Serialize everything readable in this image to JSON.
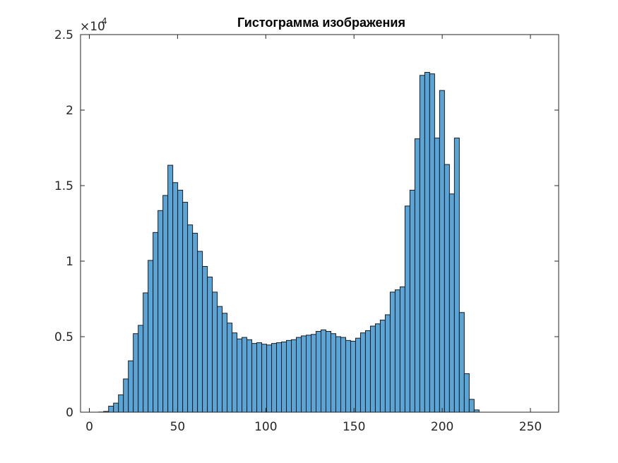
{
  "chart_data": {
    "type": "bar",
    "title": "Гистограмма изображения",
    "xlabel": "",
    "ylabel": "",
    "xlim": [
      -5,
      266
    ],
    "ylim": [
      0,
      25000
    ],
    "x_ticks": [
      0,
      50,
      100,
      150,
      200,
      250
    ],
    "y_ticks": [
      0,
      5000,
      10000,
      15000,
      20000,
      25000
    ],
    "y_tick_labels": [
      "0",
      "0.5",
      "1",
      "1.5",
      "2",
      "2.5"
    ],
    "y_exponent": {
      "base": "×10",
      "power": "4"
    },
    "grid": false,
    "bar_color": "#5aa5d8",
    "bin_width": 2.8,
    "bins_start": 2.5,
    "values": [
      0,
      10,
      50,
      400,
      600,
      1150,
      2200,
      3400,
      5200,
      5750,
      7900,
      10050,
      11900,
      13350,
      14350,
      16350,
      15200,
      14700,
      13900,
      12400,
      11850,
      10650,
      9650,
      8950,
      7950,
      7000,
      6550,
      5900,
      5250,
      4850,
      4950,
      4800,
      4550,
      4600,
      4500,
      4450,
      4550,
      4600,
      4650,
      4750,
      4800,
      4950,
      5050,
      5100,
      5150,
      5350,
      5450,
      5350,
      5200,
      5000,
      4950,
      4750,
      4700,
      4900,
      5250,
      5400,
      5700,
      5850,
      6100,
      6450,
      7950,
      8100,
      8300,
      13650,
      14700,
      18100,
      22300,
      22500,
      22400,
      18150,
      21300,
      16400,
      14450,
      18150,
      6600,
      2550,
      850,
      150,
      0
    ]
  }
}
